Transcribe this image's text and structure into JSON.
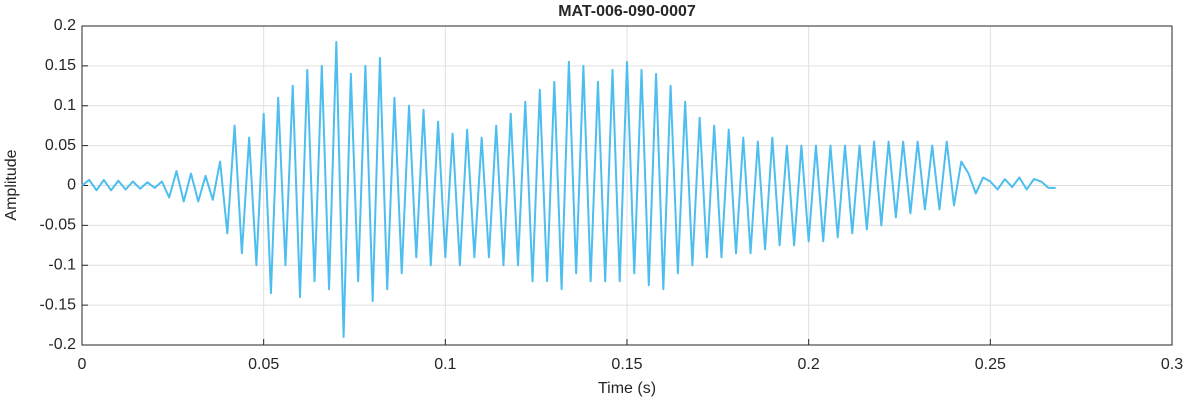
{
  "chart_data": {
    "type": "line",
    "title": "MAT-006-090-0007",
    "xlabel": "Time (s)",
    "ylabel": "Amplitude",
    "x": [
      0,
      0.002,
      0.004,
      0.006,
      0.008,
      0.01,
      0.012,
      0.014,
      0.016,
      0.018,
      0.02,
      0.022,
      0.024,
      0.026,
      0.028,
      0.03,
      0.032,
      0.034,
      0.036,
      0.038,
      0.04,
      0.042,
      0.044,
      0.046,
      0.048,
      0.05,
      0.052,
      0.054,
      0.056,
      0.058,
      0.06,
      0.062,
      0.064,
      0.066,
      0.068,
      0.07,
      0.072,
      0.074,
      0.076,
      0.078,
      0.08,
      0.082,
      0.084,
      0.086,
      0.088,
      0.09,
      0.092,
      0.094,
      0.096,
      0.098,
      0.1,
      0.102,
      0.104,
      0.106,
      0.108,
      0.11,
      0.112,
      0.114,
      0.116,
      0.118,
      0.12,
      0.122,
      0.124,
      0.126,
      0.128,
      0.13,
      0.132,
      0.134,
      0.136,
      0.138,
      0.14,
      0.142,
      0.144,
      0.146,
      0.148,
      0.15,
      0.152,
      0.154,
      0.156,
      0.158,
      0.16,
      0.162,
      0.164,
      0.166,
      0.168,
      0.17,
      0.172,
      0.174,
      0.176,
      0.178,
      0.18,
      0.182,
      0.184,
      0.186,
      0.188,
      0.19,
      0.192,
      0.194,
      0.196,
      0.198,
      0.2,
      0.202,
      0.204,
      0.206,
      0.208,
      0.21,
      0.212,
      0.214,
      0.216,
      0.218,
      0.22,
      0.222,
      0.224,
      0.226,
      0.228,
      0.23,
      0.232,
      0.234,
      0.236,
      0.238,
      0.24,
      0.242,
      0.244,
      0.246,
      0.248,
      0.25,
      0.252,
      0.254,
      0.256,
      0.258,
      0.26,
      0.262,
      0.264,
      0.266,
      0.268
    ],
    "series": [
      {
        "name": "Amplitude",
        "color": "#4dbeee",
        "values": [
          0,
          0.007,
          -0.006,
          0.007,
          -0.006,
          0.006,
          -0.005,
          0.005,
          -0.004,
          0.004,
          -0.003,
          0.005,
          -0.015,
          0.018,
          -0.02,
          0.015,
          -0.02,
          0.012,
          -0.018,
          0.03,
          -0.06,
          0.075,
          -0.085,
          0.06,
          -0.1,
          0.09,
          -0.135,
          0.11,
          -0.1,
          0.125,
          -0.14,
          0.145,
          -0.12,
          0.15,
          -0.13,
          0.18,
          -0.19,
          0.14,
          -0.12,
          0.15,
          -0.145,
          0.16,
          -0.13,
          0.11,
          -0.11,
          0.1,
          -0.09,
          0.095,
          -0.1,
          0.08,
          -0.09,
          0.065,
          -0.1,
          0.07,
          -0.09,
          0.06,
          -0.09,
          0.075,
          -0.1,
          0.09,
          -0.1,
          0.105,
          -0.12,
          0.12,
          -0.12,
          0.13,
          -0.13,
          0.155,
          -0.11,
          0.15,
          -0.12,
          0.13,
          -0.12,
          0.145,
          -0.12,
          0.155,
          -0.11,
          0.145,
          -0.125,
          0.14,
          -0.13,
          0.125,
          -0.11,
          0.105,
          -0.1,
          0.085,
          -0.09,
          0.075,
          -0.09,
          0.07,
          -0.085,
          0.06,
          -0.085,
          0.055,
          -0.08,
          0.06,
          -0.075,
          0.05,
          -0.075,
          0.05,
          -0.07,
          0.05,
          -0.07,
          0.05,
          -0.065,
          0.05,
          -0.06,
          0.05,
          -0.055,
          0.055,
          -0.05,
          0.055,
          -0.04,
          0.055,
          -0.035,
          0.055,
          -0.03,
          0.05,
          -0.03,
          0.055,
          -0.025,
          0.03,
          0.015,
          -0.01,
          0.01,
          0.005,
          -0.005,
          0.008,
          -0.002,
          0.01,
          -0.005,
          0.008,
          0.005,
          -0.003,
          -0.003
        ]
      }
    ],
    "xlim": [
      0,
      0.3
    ],
    "xticks": [
      0,
      0.05,
      0.1,
      0.15,
      0.2,
      0.25,
      0.3
    ],
    "ylim": [
      -0.2,
      0.2
    ],
    "yticks": [
      -0.2,
      -0.15,
      -0.1,
      -0.05,
      0,
      0.05,
      0.1,
      0.15,
      0.2
    ],
    "grid": true
  }
}
